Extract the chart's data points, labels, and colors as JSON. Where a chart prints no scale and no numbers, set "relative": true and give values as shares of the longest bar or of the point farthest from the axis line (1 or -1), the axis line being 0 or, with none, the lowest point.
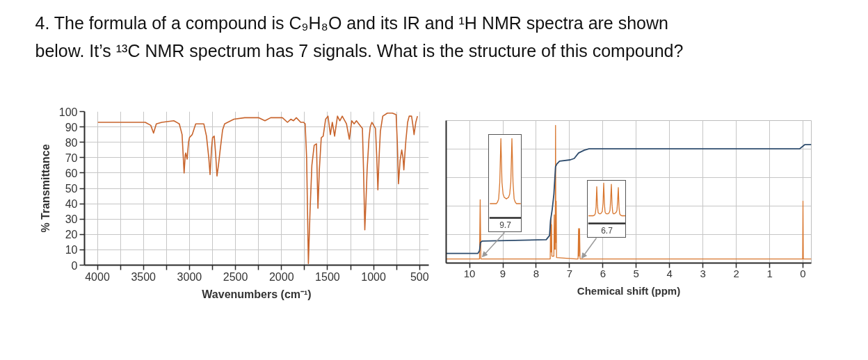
{
  "chart_data": [
    {
      "type": "other",
      "title": "4. The formula of a compound is C₉H₈O and its IR and ¹H NMR spectra are shown below. It’s ¹³C NMR spectrum has 7 signals. What is the structure of this compound?"
    },
    {
      "type": "line",
      "xlabel": "Wavenumbers (cm⁻¹)",
      "ylabel": "% Transmittance",
      "xlim": [
        4140,
        400
      ],
      "xticks": [
        4000,
        {
          "value": 3750,
          "label": null
        },
        3500,
        {
          "value": 3250,
          "label": null
        },
        3000,
        {
          "value": 2750,
          "label": null
        },
        2500,
        {
          "value": 2250,
          "label": null
        },
        2000,
        {
          "value": 1750,
          "label": null
        },
        1500,
        {
          "value": 1250,
          "label": null
        },
        1000,
        {
          "value": 750,
          "label": null
        },
        500
      ],
      "ylim": [
        0,
        100
      ],
      "yticks": [
        0,
        10,
        20,
        30,
        40,
        50,
        60,
        70,
        80,
        90,
        100
      ],
      "grid": true,
      "x": [
        3995,
        3800,
        3600,
        3480,
        3420,
        3390,
        3360,
        3300,
        3170,
        3110,
        3080,
        3058,
        3045,
        3040,
        3025,
        3010,
        3000,
        2970,
        2932,
        2844,
        2815,
        2790,
        2776,
        2760,
        2749,
        2731,
        2715,
        2701,
        2685,
        2668,
        2640,
        2618,
        2517,
        2400,
        2250,
        2180,
        2118,
        1990,
        1935,
        1899,
        1870,
        1839,
        1791,
        1760,
        1743,
        1727,
        1708,
        1690,
        1670,
        1645,
        1620,
        1604,
        1589,
        1568,
        1547,
        1521,
        1495,
        1469,
        1448,
        1423,
        1392,
        1366,
        1340,
        1294,
        1263,
        1237,
        1211,
        1186,
        1147,
        1121,
        1108,
        1095,
        1080,
        1070,
        1050,
        1036,
        1018,
        979,
        965,
        953,
        940,
        926,
        900,
        850,
        795,
        755,
        742,
        729,
        712,
        694,
        680,
        671,
        660,
        649,
        630,
        613,
        587,
        570,
        560,
        541,
        523
      ],
      "series": [
        {
          "color": "#c8642c",
          "values": [
            93,
            93,
            93,
            93,
            91,
            86,
            92,
            93,
            94,
            92,
            85,
            60,
            72,
            73,
            69,
            80,
            83,
            85,
            92,
            92,
            84,
            70,
            59,
            76,
            83,
            84,
            72,
            58,
            65,
            74,
            88,
            92,
            95,
            96,
            96,
            94,
            96,
            96,
            93,
            95,
            94,
            96,
            93,
            93,
            92,
            70,
            1,
            35,
            65,
            78,
            79,
            37,
            62,
            83,
            84,
            95,
            97,
            85,
            93,
            84,
            97,
            94,
            97,
            92,
            82,
            94,
            92,
            94,
            91,
            89,
            60,
            23,
            45,
            62,
            82,
            90,
            93,
            89,
            70,
            49,
            70,
            87,
            97,
            99,
            99,
            98,
            80,
            53,
            68,
            75,
            70,
            62,
            72,
            81,
            93,
            97,
            97,
            90,
            85,
            93,
            97
          ]
        }
      ]
    },
    {
      "type": "line",
      "relative": true,
      "xlabel": "Chemical shift (ppm)",
      "xlim": [
        10.7,
        -0.25
      ],
      "xticks": [
        10,
        9,
        8,
        7,
        6,
        5,
        4,
        3,
        2,
        1,
        0
      ],
      "grid": true,
      "series": [
        {
          "color": "#d8762e",
          "x": [
            10.7,
            9.7,
            9.68,
            9.66,
            7.7,
            7.58,
            7.57,
            7.565,
            7.555,
            7.55,
            7.54,
            7.53,
            7.47,
            7.46,
            7.45,
            7.43,
            7.42,
            7.41,
            7.4,
            7.39,
            6.8,
            6.745,
            6.73,
            6.72,
            6.7,
            6.685,
            0.1,
            0.01,
            0,
            -0.01,
            -0.25
          ],
          "values": [
            0.03,
            0.03,
            0.46,
            0.03,
            0.03,
            0.03,
            0.3,
            0.08,
            0.32,
            0.08,
            0.28,
            0.05,
            0.05,
            0.35,
            0.1,
            0.1,
            1.0,
            0.15,
            0.45,
            0.04,
            0.03,
            0.03,
            0.25,
            0.05,
            0.25,
            0.03,
            0.03,
            0.03,
            0.45,
            0.03,
            0.03
          ]
        },
        {
          "color": "#2e4c6d",
          "x": [
            10.7,
            9.75,
            9.7,
            9.67,
            9.62,
            7.7,
            7.6,
            7.57,
            7.52,
            7.47,
            7.42,
            7.38,
            7.3,
            6.98,
            6.86,
            6.73,
            6.56,
            6.42,
            0.1,
            0.0,
            -0.05,
            -0.25
          ],
          "values": [
            0.07,
            0.07,
            0.09,
            0.15,
            0.16,
            0.17,
            0.2,
            0.31,
            0.39,
            0.5,
            0.7,
            0.72,
            0.74,
            0.75,
            0.76,
            0.8,
            0.82,
            0.83,
            0.83,
            0.85,
            0.86,
            0.86
          ]
        }
      ]
    },
    {
      "type": "line",
      "relative": true,
      "annotations": [
        "9.7"
      ],
      "categories": [
        null,
        null,
        null,
        null,
        null,
        null,
        null,
        null,
        null,
        null,
        null,
        null,
        null,
        null,
        null,
        null,
        null,
        null,
        null,
        null,
        null,
        null,
        null,
        null,
        null,
        null,
        null,
        null,
        null
      ],
      "series": [
        {
          "color": "#d8762e",
          "values": [
            0.18,
            0.18,
            0.18,
            0.18,
            0.18,
            0.18,
            0.18,
            0.2,
            0.24,
            0.45,
            1.0,
            0.45,
            0.3,
            0.26,
            0.25,
            0.24,
            0.25,
            0.26,
            0.3,
            0.45,
            1.0,
            0.45,
            0.24,
            0.2,
            0.18,
            0.18,
            0.18,
            0.18,
            0.18
          ]
        }
      ]
    },
    {
      "type": "line",
      "relative": true,
      "annotations": [
        "6.7"
      ],
      "categories": [
        null,
        null,
        null,
        null,
        null,
        null,
        null,
        null,
        null,
        null,
        null,
        null,
        null,
        null,
        null,
        null,
        null,
        null,
        null,
        null,
        null,
        null,
        null,
        null,
        null,
        null,
        null,
        null,
        null,
        null,
        null,
        null,
        null,
        null,
        null,
        null,
        null,
        null,
        null,
        null,
        null,
        null,
        null,
        null,
        null,
        null,
        null,
        null,
        null,
        null,
        null,
        null,
        null,
        null
      ],
      "series": [
        {
          "color": "#d8762e",
          "values": [
            0.19,
            0.19,
            0.19,
            0.19,
            0.19,
            0.19,
            0.19,
            0.19,
            0.2,
            0.21,
            0.25,
            0.4,
            0.91,
            0.45,
            0.27,
            0.25,
            0.24,
            0.24,
            0.25,
            0.27,
            0.3,
            0.5,
            1.0,
            0.5,
            0.28,
            0.25,
            0.24,
            0.24,
            0.24,
            0.25,
            0.27,
            0.32,
            0.6,
            0.97,
            0.45,
            0.27,
            0.24,
            0.24,
            0.25,
            0.26,
            0.28,
            0.32,
            0.55,
            0.89,
            0.4,
            0.24,
            0.21,
            0.2,
            0.19,
            0.19,
            0.19,
            0.19,
            0.19,
            0.19
          ]
        }
      ]
    }
  ]
}
